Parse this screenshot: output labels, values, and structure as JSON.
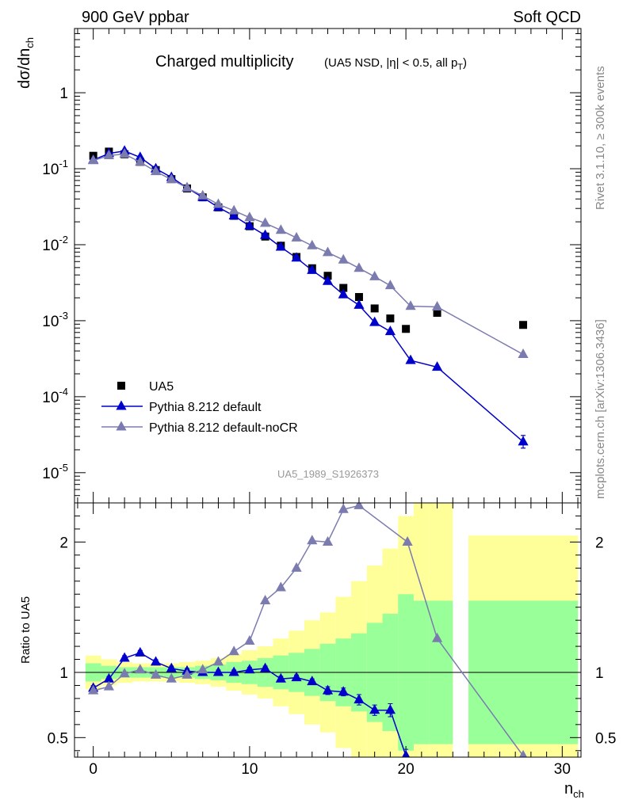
{
  "header": {
    "left": "900 GeV ppbar",
    "right": "Soft QCD"
  },
  "side_text": {
    "rivet": "Rivet 3.1.10, ≥ 300k events",
    "mcplots": "mcplots.cern.ch [arXiv:1306.3436]"
  },
  "watermark": "UA5_1989_S1926373",
  "chart_data": [
    {
      "type": "scatter",
      "title": "Charged multiplicity",
      "subtitle": "(UA5 NSD, |η| < 0.5, all p_T)",
      "ylabel": "dσ/dn_ch",
      "yscale": "log",
      "ylim": [
        4e-06,
        7
      ],
      "xlim": [
        -1.2,
        31.2
      ],
      "ytick_labels": [
        "10^-5",
        "10^-4",
        "10^-3",
        "10^-2",
        "10^-1",
        "1"
      ],
      "legend": {
        "position": "bottom-left",
        "entries": [
          "UA5",
          "Pythia 8.212 default",
          "Pythia 8.212 default-noCR"
        ]
      },
      "series": [
        {
          "name": "UA5",
          "marker": "square",
          "color": "#000000",
          "x": [
            0,
            1,
            2,
            3,
            4,
            5,
            6,
            7,
            8,
            9,
            10,
            11,
            12,
            13,
            14,
            15,
            16,
            17,
            18,
            19,
            20,
            22,
            27.5
          ],
          "y": [
            0.148,
            0.168,
            0.155,
            0.123,
            0.096,
            0.073,
            0.055,
            0.042,
            0.031,
            0.024,
            0.0175,
            0.0128,
            0.0097,
            0.0069,
            0.0049,
            0.0039,
            0.0027,
            0.00205,
            0.00145,
            0.00107,
            0.00078,
            0.00127,
            0.00088
          ]
        },
        {
          "name": "Pythia 8.212 default",
          "marker": "triangle",
          "color": "#0000cc",
          "x": [
            0,
            1,
            2,
            3,
            4,
            5,
            6,
            7,
            8,
            9,
            10,
            11,
            12,
            13,
            14,
            15,
            16,
            17,
            18,
            19,
            20.3,
            22,
            27.5
          ],
          "y": [
            0.13,
            0.159,
            0.171,
            0.141,
            0.1,
            0.077,
            0.056,
            0.042,
            0.031,
            0.024,
            0.0177,
            0.0133,
            0.0093,
            0.0067,
            0.0046,
            0.0033,
            0.0022,
            0.0016,
            0.00095,
            0.00072,
            0.0003,
            0.000245,
            2.55e-05
          ]
        },
        {
          "name": "Pythia 8.212 default-noCR",
          "marker": "triangle",
          "color": "#7b7bb0",
          "x": [
            0,
            1,
            2,
            3,
            4,
            5,
            6,
            7,
            8,
            9,
            10,
            11,
            12,
            13,
            14,
            15,
            16,
            17,
            18,
            19,
            20.3,
            22,
            27.5
          ],
          "y": [
            0.128,
            0.149,
            0.156,
            0.122,
            0.092,
            0.072,
            0.056,
            0.044,
            0.034,
            0.028,
            0.0228,
            0.0192,
            0.0155,
            0.0123,
            0.0097,
            0.0079,
            0.0063,
            0.0049,
            0.0038,
            0.0029,
            0.00155,
            0.00152,
            0.00036
          ]
        }
      ]
    },
    {
      "type": "line",
      "ylabel": "Ratio to UA5",
      "xlabel": "n_ch",
      "ylim": [
        0.35,
        2.3
      ],
      "xlim": [
        -1.2,
        31.2
      ],
      "xticks": [
        0,
        10,
        20,
        30
      ],
      "yticks": [
        0.5,
        1,
        2
      ],
      "bands": {
        "edges": [
          -0.5,
          0.5,
          1.5,
          2.5,
          3.5,
          4.5,
          5.5,
          6.5,
          7.5,
          8.5,
          9.5,
          10.5,
          11.5,
          12.5,
          13.5,
          14.5,
          15.5,
          16.5,
          17.5,
          18.5,
          19.5,
          20.5,
          21.5,
          23,
          24,
          31
        ],
        "green": [
          0.07,
          0.05,
          0.04,
          0.04,
          0.04,
          0.04,
          0.04,
          0.05,
          0.06,
          0.08,
          0.09,
          0.11,
          0.13,
          0.15,
          0.18,
          0.22,
          0.26,
          0.3,
          0.38,
          0.45,
          0.6,
          0.55,
          0.55,
          null,
          0.55,
          0.6
        ],
        "yellow": [
          0.13,
          0.1,
          0.08,
          0.07,
          0.07,
          0.07,
          0.08,
          0.09,
          0.11,
          0.14,
          0.17,
          0.2,
          0.26,
          0.32,
          0.4,
          0.46,
          0.58,
          0.7,
          0.82,
          0.95,
          1.2,
          1.5,
          1.5,
          null,
          1.05,
          1.1
        ]
      },
      "series": [
        {
          "name": "Pythia 8.212 default",
          "color": "#0000cc",
          "x": [
            0,
            1,
            2,
            3,
            4,
            5,
            6,
            7,
            8,
            9,
            10,
            11,
            12,
            13,
            14,
            15,
            16,
            17,
            18,
            19,
            20
          ],
          "y": [
            0.88,
            0.95,
            1.11,
            1.15,
            1.08,
            1.03,
            1.01,
            1.0,
            1.0,
            1.0,
            1.02,
            1.03,
            0.95,
            0.96,
            0.93,
            0.86,
            0.85,
            0.79,
            0.71,
            0.71,
            0.36
          ],
          "err": [
            0.01,
            0.01,
            0.01,
            0.01,
            0.01,
            0.01,
            0.01,
            0.01,
            0.01,
            0.01,
            0.01,
            0.01,
            0.02,
            0.02,
            0.02,
            0.03,
            0.03,
            0.04,
            0.04,
            0.05,
            0.05
          ]
        },
        {
          "name": "Pythia 8.212 default-noCR",
          "color": "#7b7bb0",
          "x": [
            0,
            1,
            2,
            3,
            4,
            5,
            6,
            7,
            8,
            9,
            10,
            11,
            12,
            13,
            14,
            15,
            16,
            17,
            20.1,
            22,
            27.5
          ],
          "y": [
            0.86,
            0.89,
            0.99,
            1.02,
            0.98,
            0.95,
            0.98,
            1.02,
            1.08,
            1.16,
            1.24,
            1.55,
            1.65,
            1.8,
            2.01,
            2.0,
            2.25,
            2.28,
            2.0,
            1.26,
            0.36
          ]
        }
      ]
    }
  ]
}
